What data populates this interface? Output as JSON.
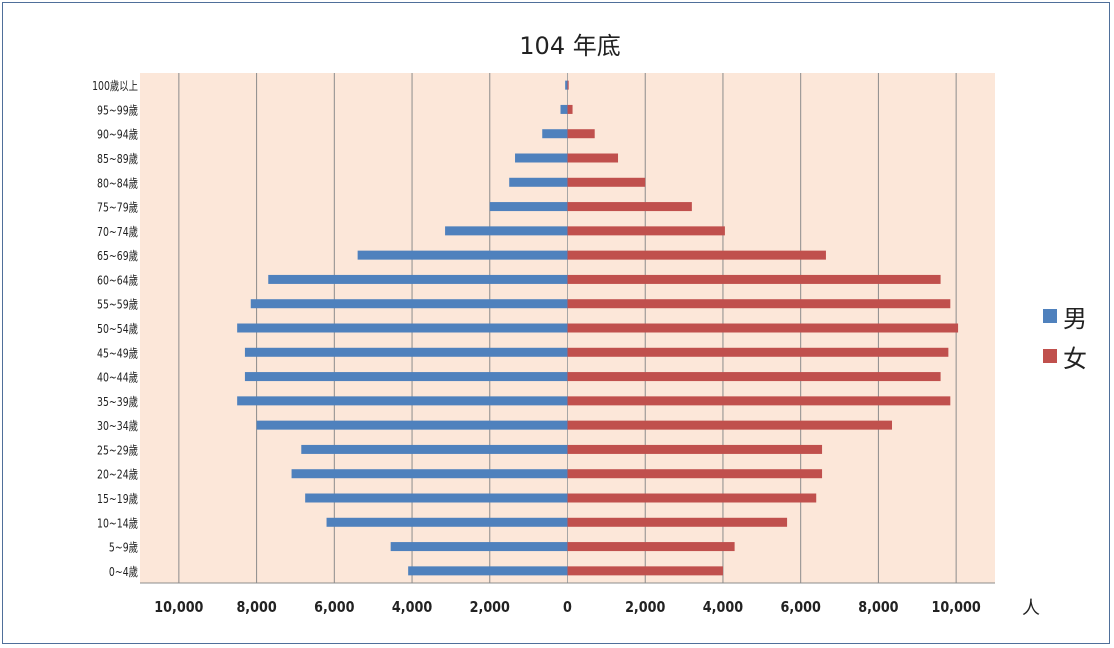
{
  "chart_data": {
    "type": "bar",
    "orientation": "horizontal",
    "title": "104 年底",
    "unit_label": "人",
    "categories": [
      "0~4歲",
      "5~9歲",
      "10~14歲",
      "15~19歲",
      "20~24歲",
      "25~29歲",
      "30~34歲",
      "35~39歲",
      "40~44歲",
      "45~49歲",
      "50~54歲",
      "55~59歲",
      "60~64歲",
      "65~69歲",
      "70~74歲",
      "75~79歲",
      "80~84歲",
      "85~89歲",
      "90~94歲",
      "95~99歲",
      "100歲以上"
    ],
    "series": [
      {
        "name": "男",
        "color": "#4f81bd",
        "values": [
          4100,
          4550,
          6200,
          6750,
          7100,
          6850,
          8000,
          8500,
          8300,
          8300,
          8500,
          8150,
          7700,
          5400,
          3150,
          2000,
          1500,
          1350,
          650,
          180,
          60
        ]
      },
      {
        "name": "女",
        "color": "#c0504d",
        "values": [
          4000,
          4300,
          5650,
          6400,
          6550,
          6550,
          8350,
          9850,
          9600,
          9800,
          10050,
          9850,
          9600,
          6650,
          4050,
          3200,
          2000,
          1300,
          700,
          130,
          30
        ]
      }
    ],
    "xlim": [
      -11000,
      11000
    ],
    "x_tick_labels": [
      "10,000",
      "8,000",
      "6,000",
      "4,000",
      "2,000",
      "0",
      "2,000",
      "4,000",
      "6,000",
      "8,000",
      "10,000"
    ],
    "x_tick_values": [
      -10000,
      -8000,
      -6000,
      -4000,
      -2000,
      0,
      2000,
      4000,
      6000,
      8000,
      10000
    ],
    "grid": true,
    "legend_position": "right",
    "plot_background": "#fce7d9"
  }
}
